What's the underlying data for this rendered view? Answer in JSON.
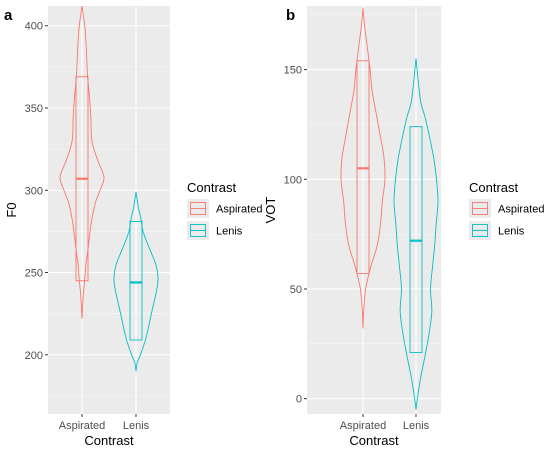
{
  "colors": {
    "Aspirated": "#f8766d",
    "Lenis": "#00bfc4",
    "panel_bg": "#ebebeb",
    "grid_major": "#ffffff"
  },
  "chart_data": [
    {
      "type": "violin",
      "panel_label": "a",
      "xlabel": "Contrast",
      "ylabel": "F0",
      "categories": [
        "Aspirated",
        "Lenis"
      ],
      "ylim": [
        164,
        412
      ],
      "yticks": [
        200,
        250,
        300,
        350,
        400
      ],
      "grid": true,
      "legend": {
        "title": "Contrast",
        "entries": [
          "Aspirated",
          "Lenis"
        ],
        "placement": "right"
      },
      "series": [
        {
          "name": "Aspirated",
          "box": {
            "q1": 245,
            "median": 307,
            "q3": 369
          },
          "profile": [
            [
              222,
              0.0
            ],
            [
              235,
              0.05
            ],
            [
              245,
              0.12
            ],
            [
              255,
              0.18
            ],
            [
              265,
              0.28
            ],
            [
              280,
              0.42
            ],
            [
              292,
              0.6
            ],
            [
              300,
              0.82
            ],
            [
              308,
              1.0
            ],
            [
              318,
              0.72
            ],
            [
              330,
              0.45
            ],
            [
              345,
              0.4
            ],
            [
              358,
              0.33
            ],
            [
              370,
              0.25
            ],
            [
              385,
              0.2
            ],
            [
              398,
              0.14
            ],
            [
              408,
              0.04
            ],
            [
              412,
              0.0
            ]
          ]
        },
        {
          "name": "Lenis",
          "box": {
            "q1": 209,
            "median": 244,
            "q3": 281
          },
          "profile": [
            [
              190,
              0.0
            ],
            [
              195,
              0.05
            ],
            [
              200,
              0.2
            ],
            [
              210,
              0.45
            ],
            [
              225,
              0.7
            ],
            [
              240,
              0.95
            ],
            [
              247,
              1.0
            ],
            [
              255,
              0.9
            ],
            [
              265,
              0.6
            ],
            [
              275,
              0.32
            ],
            [
              283,
              0.22
            ],
            [
              290,
              0.1
            ],
            [
              299,
              0.0
            ]
          ]
        }
      ]
    },
    {
      "type": "violin",
      "panel_label": "b",
      "xlabel": "Contrast",
      "ylabel": "VOT",
      "categories": [
        "Aspirated",
        "Lenis"
      ],
      "ylim": [
        -7,
        179
      ],
      "yticks": [
        0,
        50,
        100,
        150
      ],
      "grid": true,
      "legend": {
        "title": "Contrast",
        "entries": [
          "Aspirated",
          "Lenis"
        ],
        "placement": "right"
      },
      "series": [
        {
          "name": "Aspirated",
          "box": {
            "q1": 57,
            "median": 105,
            "q3": 154
          },
          "profile": [
            [
              32,
              0.0
            ],
            [
              40,
              0.03
            ],
            [
              50,
              0.12
            ],
            [
              60,
              0.35
            ],
            [
              70,
              0.65
            ],
            [
              80,
              0.8
            ],
            [
              90,
              0.88
            ],
            [
              100,
              1.0
            ],
            [
              110,
              0.95
            ],
            [
              120,
              0.78
            ],
            [
              130,
              0.6
            ],
            [
              140,
              0.42
            ],
            [
              150,
              0.32
            ],
            [
              160,
              0.2
            ],
            [
              170,
              0.07
            ],
            [
              178,
              0.0
            ]
          ]
        },
        {
          "name": "Lenis",
          "box": {
            "q1": 21,
            "median": 72,
            "q3": 124
          },
          "profile": [
            [
              -5,
              0.0
            ],
            [
              0,
              0.06
            ],
            [
              10,
              0.22
            ],
            [
              20,
              0.42
            ],
            [
              30,
              0.6
            ],
            [
              40,
              0.72
            ],
            [
              50,
              0.66
            ],
            [
              60,
              0.75
            ],
            [
              70,
              0.85
            ],
            [
              80,
              0.92
            ],
            [
              90,
              1.0
            ],
            [
              100,
              0.93
            ],
            [
              110,
              0.8
            ],
            [
              120,
              0.6
            ],
            [
              128,
              0.42
            ],
            [
              135,
              0.22
            ],
            [
              145,
              0.1
            ],
            [
              155,
              0.0
            ]
          ]
        }
      ]
    }
  ]
}
